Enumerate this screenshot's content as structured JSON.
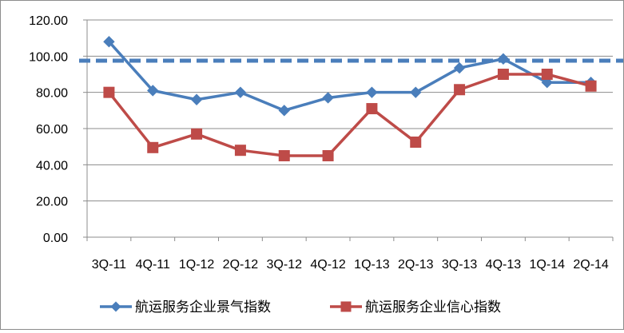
{
  "chart_data": {
    "type": "line",
    "categories": [
      "3Q-11",
      "4Q-11",
      "1Q-12",
      "2Q-12",
      "3Q-12",
      "4Q-12",
      "1Q-13",
      "2Q-13",
      "3Q-13",
      "4Q-13",
      "1Q-14",
      "2Q-14"
    ],
    "series": [
      {
        "name": "航运服务企业景气指数",
        "color": "#4a7ebb",
        "marker": "diamond",
        "values": [
          108.0,
          81.0,
          76.0,
          80.0,
          70.0,
          77.0,
          80.0,
          80.0,
          93.5,
          98.5,
          85.5,
          85.5
        ]
      },
      {
        "name": "航运服务企业信心指数",
        "color": "#be4b48",
        "marker": "square",
        "values": [
          80.0,
          49.5,
          57.0,
          48.0,
          45.0,
          45.0,
          71.0,
          52.5,
          81.5,
          90.0,
          90.0,
          83.5
        ]
      }
    ],
    "reference_line": {
      "value": 97.5,
      "style": "dashed",
      "color": "#4a7ebb"
    },
    "ylim": [
      0,
      120
    ],
    "yticks": [
      "0.00",
      "20.00",
      "40.00",
      "60.00",
      "80.00",
      "100.00",
      "120.00"
    ],
    "ytick_values": [
      0,
      20,
      40,
      60,
      80,
      100,
      120
    ],
    "grid": true,
    "legend_position": "bottom",
    "title": "",
    "xlabel": "",
    "ylabel": ""
  }
}
